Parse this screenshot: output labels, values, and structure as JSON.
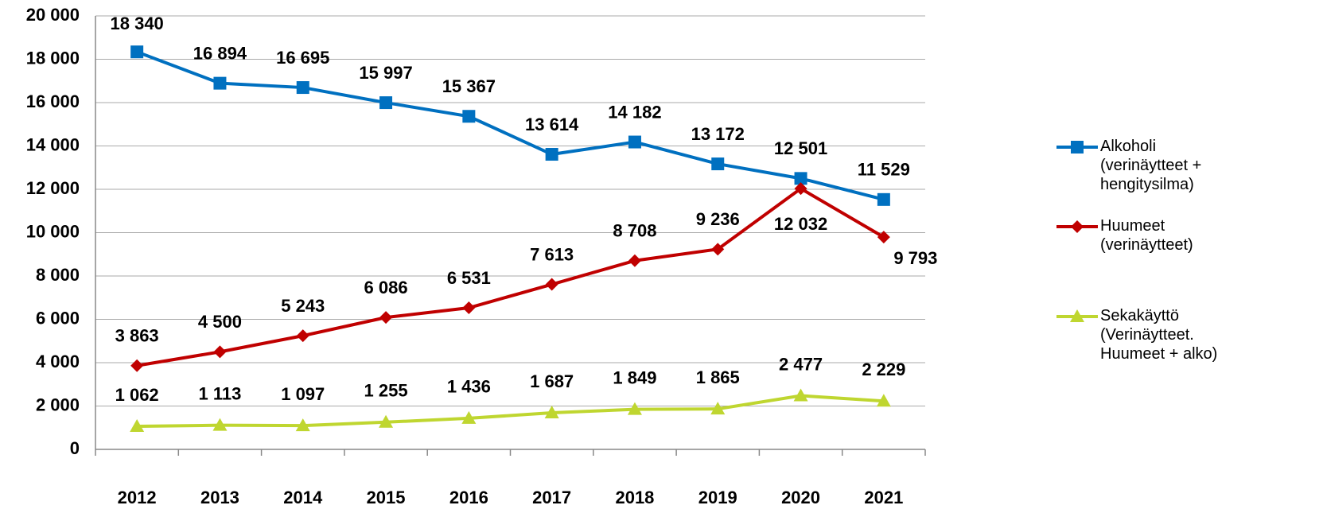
{
  "chart_data": {
    "type": "line",
    "categories": [
      "2012",
      "2013",
      "2014",
      "2015",
      "2016",
      "2017",
      "2018",
      "2019",
      "2020",
      "2021"
    ],
    "series": [
      {
        "name": "Alkoholi (verinäytteet + hengitysilma)",
        "color": "#0070c0",
        "marker": "square",
        "values": [
          18340,
          16894,
          16695,
          15997,
          15367,
          13614,
          14182,
          13172,
          12501,
          11529
        ],
        "value_labels": [
          "18 340",
          "16 894",
          "16 695",
          "15 997",
          "15 367",
          "13 614",
          "14 182",
          "13 172",
          "12 501",
          "11 529"
        ]
      },
      {
        "name": "Huumeet (verinäytteet)",
        "color": "#c00000",
        "marker": "diamond",
        "values": [
          3863,
          4500,
          5243,
          6086,
          6531,
          7613,
          8708,
          9236,
          12032,
          9793
        ],
        "value_labels": [
          "3 863",
          "4 500",
          "5 243",
          "6 086",
          "6 531",
          "7 613",
          "8 708",
          "9 236",
          "12 032",
          "9 793"
        ]
      },
      {
        "name": "Sekakäyttö (Verinäytteet. Huumeet + alko)",
        "color": "#bfd630",
        "marker": "triangle",
        "values": [
          1062,
          1113,
          1097,
          1255,
          1436,
          1687,
          1849,
          1865,
          2477,
          2229
        ],
        "value_labels": [
          "1 062",
          "1 113",
          "1 097",
          "1 255",
          "1 436",
          "1 687",
          "1 849",
          "1 865",
          "2 477",
          "2 229"
        ]
      }
    ],
    "ylim": [
      0,
      20000
    ],
    "yticks": [
      0,
      {
        "value": 2000,
        "label": "2 000"
      },
      {
        "value": 4000,
        "label": "4 000"
      },
      {
        "value": 6000,
        "label": "6 000"
      },
      {
        "value": 8000,
        "label": "8 000"
      },
      {
        "value": 10000,
        "label": "10 000"
      },
      {
        "value": 12000,
        "label": "12 000"
      },
      {
        "value": 14000,
        "label": "14 000"
      },
      {
        "value": 16000,
        "label": "16 000"
      },
      {
        "value": 18000,
        "label": "18 000"
      },
      {
        "value": 20000,
        "label": "20 000"
      }
    ],
    "grid": true,
    "legend": "right"
  }
}
